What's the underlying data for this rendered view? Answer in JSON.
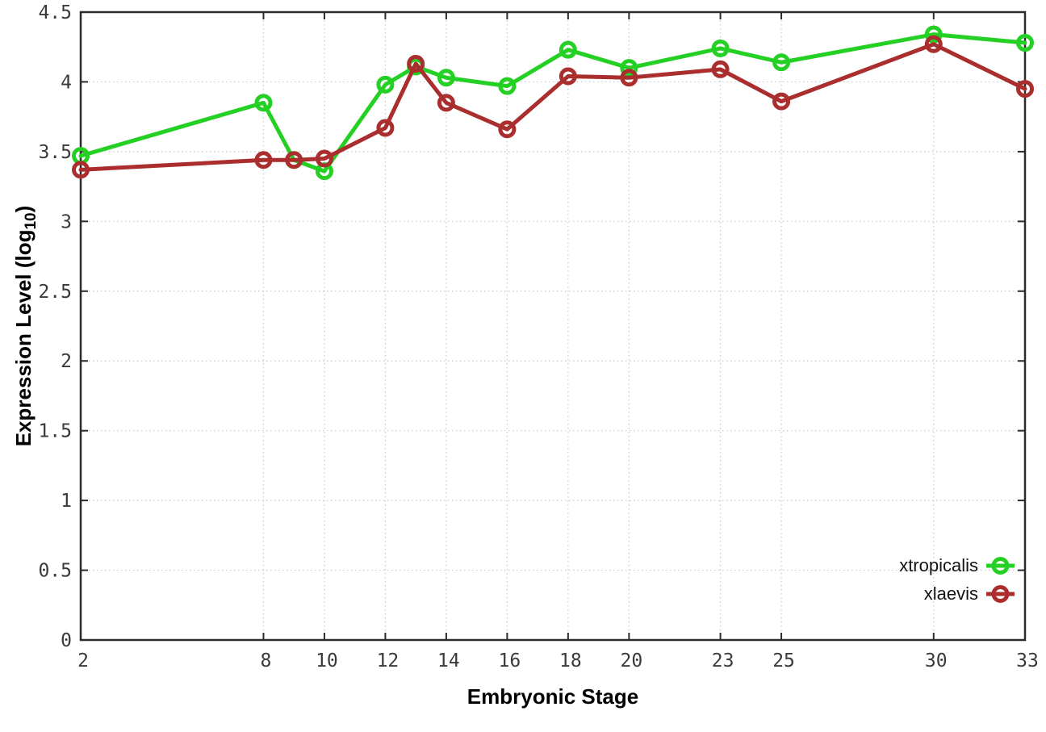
{
  "chart_data": {
    "type": "line",
    "title": "",
    "xlabel": "Embryonic Stage",
    "ylabel": "Expression Level (log10)",
    "ylabel_parts": {
      "pre": "Expression Level (log",
      "sub": "10",
      "post": ")"
    },
    "xlim": [
      2,
      33
    ],
    "ylim": [
      0,
      4.5
    ],
    "grid": true,
    "legend_position": "bottom-right",
    "x_tick_values": [
      2,
      8,
      10,
      12,
      14,
      16,
      18,
      20,
      23,
      25,
      30,
      33
    ],
    "x_tick_labels": [
      "2",
      "8",
      "10",
      "12",
      "14",
      "16",
      "18",
      "20",
      "23",
      "25",
      "30",
      "33"
    ],
    "y_tick_values": [
      0,
      0.5,
      1,
      1.5,
      2,
      2.5,
      3,
      3.5,
      4,
      4.5
    ],
    "y_tick_labels": [
      "0",
      "0.5",
      "1",
      "1.5",
      "2",
      "2.5",
      "3",
      "3.5",
      "4",
      "4.5"
    ],
    "x": [
      2,
      8,
      9,
      10,
      12,
      13,
      14,
      16,
      18,
      20,
      23,
      25,
      30,
      33
    ],
    "series": [
      {
        "name": "xtropicalis",
        "color": "#25d025",
        "values": [
          3.47,
          3.85,
          3.44,
          3.36,
          3.98,
          4.11,
          4.03,
          3.97,
          4.23,
          4.1,
          4.24,
          4.14,
          4.34,
          4.28
        ]
      },
      {
        "name": "xlaevis",
        "color": "#aa2e2e",
        "values": [
          3.37,
          3.44,
          3.44,
          3.45,
          3.67,
          4.13,
          3.85,
          3.66,
          4.04,
          4.03,
          4.09,
          3.86,
          4.27,
          3.95
        ]
      }
    ]
  },
  "style": {
    "background": "#ffffff",
    "grid_color": "#c4c9ce",
    "axis_color": "#2b2b2b",
    "tick_label_color": "#3a3a3a",
    "legend_text_color": "#141414"
  }
}
